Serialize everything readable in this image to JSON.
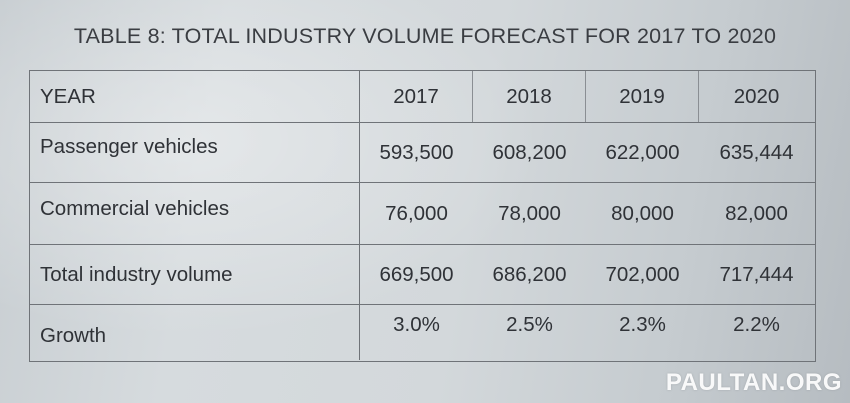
{
  "title": "TABLE 8: TOTAL INDUSTRY VOLUME FORECAST FOR 2017 TO 2020",
  "table": {
    "header": {
      "label": "YEAR",
      "years": [
        "2017",
        "2018",
        "2019",
        "2020"
      ]
    },
    "rows": [
      {
        "label": "Passenger vehicles",
        "values": [
          "593,500",
          "608,200",
          "622,000",
          "635,444"
        ]
      },
      {
        "label": "Commercial vehicles",
        "values": [
          "76,000",
          "78,000",
          "80,000",
          "82,000"
        ]
      },
      {
        "label": "Total industry volume",
        "values": [
          "669,500",
          "686,200",
          "702,000",
          "717,444"
        ]
      },
      {
        "label": "Growth",
        "values": [
          "3.0%",
          "2.5%",
          "2.3%",
          "2.2%"
        ]
      }
    ]
  },
  "watermark": "PAULTAN.ORG",
  "colors": {
    "paper": "#d3d8db",
    "ink": "#2f3237",
    "rule": "#6f7378",
    "watermark": "#ffffff"
  }
}
